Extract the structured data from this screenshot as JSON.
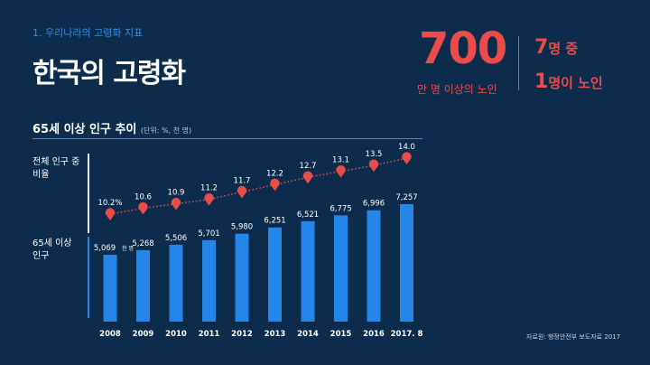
{
  "header": {
    "section": "1. 우리나라의 고령화 지표",
    "title": "한국의 고령화"
  },
  "highlight": {
    "big_number": "700",
    "big_caption": "만 명 이상의 노인",
    "ratio_line1_num": "7",
    "ratio_line1_text": "명 중",
    "ratio_line2_num": "1",
    "ratio_line2_text": "명이 노인"
  },
  "chart_header": {
    "title": "65세 이상 인구 추이",
    "unit": "(단위: %, 천 명)"
  },
  "row_labels": {
    "ratio_line1": "전체 인구 중",
    "ratio_line2": "비율",
    "pop_line1": "65세 이상",
    "pop_line2": "인구"
  },
  "source": "자료원: 행정안전부 보도자료 2017",
  "colors": {
    "accent_red": "#e94c49",
    "bar_blue": "#2486e8",
    "background": "#0d2c4c"
  },
  "chart_data": {
    "type": "bar",
    "categories": [
      "2008",
      "2009",
      "2010",
      "2011",
      "2012",
      "2013",
      "2014",
      "2015",
      "2016",
      "2017. 8"
    ],
    "series": [
      {
        "values": [
          5069,
          5268,
          5506,
          5701,
          5980,
          6251,
          6521,
          6775,
          6996,
          7257
        ],
        "labels": [
          "5,069",
          "5,268",
          "5,506",
          "5,701",
          "5,980",
          "6,251",
          "6,521",
          "6,775",
          "6,996",
          "7,257"
        ],
        "first_label_unit": "천 명"
      },
      {
        "values": [
          10.2,
          10.6,
          10.9,
          11.2,
          11.7,
          12.2,
          12.7,
          13.1,
          13.5,
          14.0
        ],
        "labels": [
          "10.2%",
          "10.6",
          "10.9",
          "11.2",
          "11.7",
          "12.2",
          "12.7",
          "13.1",
          "13.5",
          "14.0"
        ]
      }
    ]
  }
}
